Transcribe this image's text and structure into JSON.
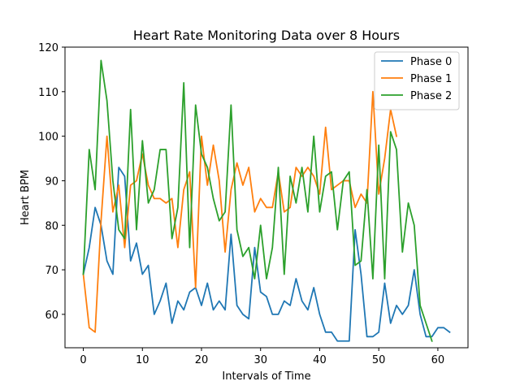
{
  "chart_data": {
    "type": "line",
    "title": "Heart Rate Monitoring Data over 8 Hours",
    "xlabel": "Intervals of Time",
    "ylabel": "Heart BPM",
    "xlim": [
      -3.1,
      65.1
    ],
    "ylim": [
      52.5,
      120
    ],
    "xticks": [
      0,
      10,
      20,
      30,
      40,
      50,
      60
    ],
    "yticks": [
      60,
      70,
      80,
      90,
      100,
      110,
      120
    ],
    "grid": false,
    "legend_position": "top-right",
    "series": [
      {
        "name": "Phase 0",
        "color": "#1f77b4",
        "x": [
          0,
          1,
          2,
          3,
          4,
          5,
          6,
          7,
          8,
          9,
          10,
          11,
          12,
          13,
          14,
          15,
          16,
          17,
          18,
          19,
          20,
          21,
          22,
          23,
          24,
          25,
          26,
          27,
          28,
          29,
          30,
          31,
          32,
          33,
          34,
          35,
          36,
          37,
          38,
          39,
          40,
          41,
          42,
          43,
          44,
          45,
          46,
          47,
          48,
          49,
          50,
          51,
          52,
          53,
          54,
          55,
          56,
          57,
          58,
          59,
          60,
          61,
          62
        ],
        "values": [
          69,
          75,
          84,
          80,
          72,
          69,
          93,
          91,
          72,
          76,
          69,
          71,
          60,
          63,
          67,
          58,
          63,
          61,
          65,
          66,
          62,
          67,
          61,
          63,
          61,
          78,
          62,
          60,
          59,
          75,
          65,
          64,
          60,
          60,
          63,
          62,
          68,
          63,
          61,
          66,
          60,
          56,
          56,
          54,
          54,
          54,
          79,
          69,
          55,
          55,
          56,
          67,
          58,
          62,
          60,
          62,
          70,
          60,
          55,
          55,
          57,
          57,
          56
        ]
      },
      {
        "name": "Phase 1",
        "color": "#ff7f0e",
        "x": [
          0,
          1,
          2,
          3,
          4,
          5,
          6,
          7,
          8,
          9,
          10,
          11,
          12,
          13,
          14,
          15,
          16,
          17,
          18,
          19,
          20,
          21,
          22,
          23,
          24,
          25,
          26,
          27,
          28,
          29,
          30,
          31,
          32,
          33,
          34,
          35,
          36,
          37,
          38,
          39,
          40,
          41,
          42,
          43,
          44,
          45,
          46,
          47,
          48,
          49,
          50,
          51,
          52,
          53
        ],
        "values": [
          69,
          57,
          56,
          81,
          100,
          83,
          89,
          75,
          89,
          90,
          96,
          89,
          86,
          86,
          85,
          86,
          75,
          88,
          92,
          66,
          100,
          89,
          98,
          90,
          74,
          88,
          94,
          89,
          93,
          83,
          86,
          84,
          84,
          92,
          83,
          84,
          93,
          91,
          93,
          91,
          87,
          102,
          88,
          89,
          90,
          90,
          84,
          87,
          85,
          110,
          87,
          95,
          106,
          100
        ]
      },
      {
        "name": "Phase 2",
        "color": "#2ca02c",
        "x": [
          0,
          1,
          2,
          3,
          4,
          5,
          6,
          7,
          8,
          9,
          10,
          11,
          12,
          13,
          14,
          15,
          16,
          17,
          18,
          19,
          20,
          21,
          22,
          23,
          24,
          25,
          26,
          27,
          28,
          29,
          30,
          31,
          32,
          33,
          34,
          35,
          36,
          37,
          38,
          39,
          40,
          41,
          42,
          43,
          44,
          45,
          46,
          47,
          48,
          49,
          50,
          51,
          52,
          53,
          54,
          55,
          56,
          57,
          58,
          59
        ],
        "values": [
          69,
          97,
          88,
          117,
          108,
          90,
          79,
          77,
          106,
          79,
          99,
          85,
          88,
          97,
          97,
          77,
          84,
          112,
          75,
          107,
          96,
          93,
          86,
          81,
          83,
          107,
          79,
          73,
          75,
          68,
          80,
          68,
          75,
          93,
          69,
          91,
          85,
          93,
          83,
          100,
          83,
          91,
          92,
          79,
          90,
          92,
          71,
          72,
          88,
          68,
          98,
          68,
          101,
          97,
          74,
          85,
          80,
          62,
          58,
          54
        ]
      }
    ]
  }
}
